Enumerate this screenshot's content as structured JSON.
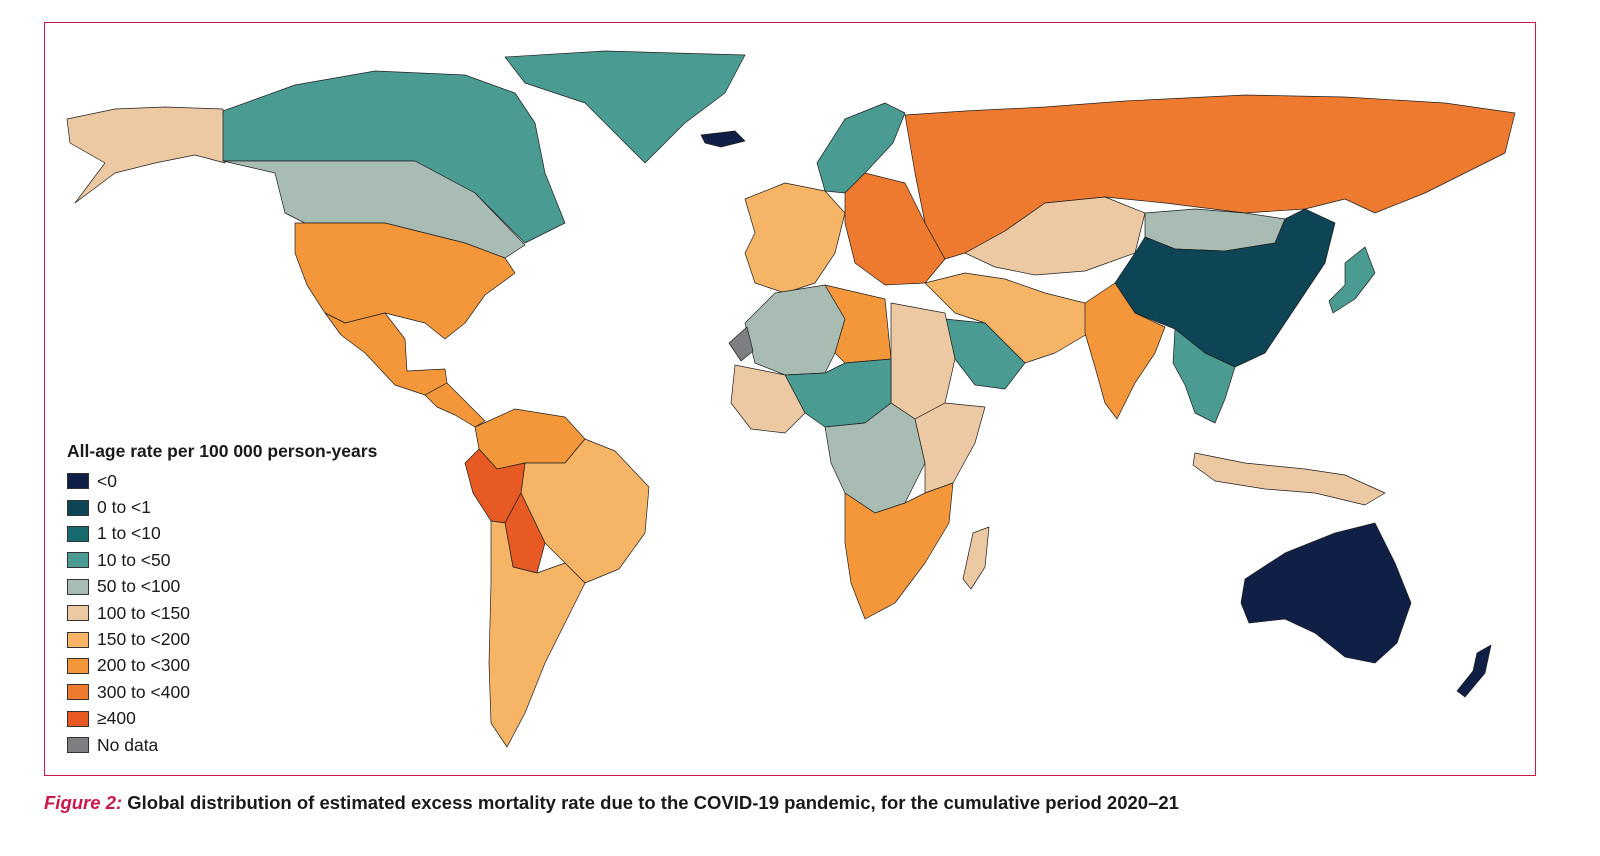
{
  "legend": {
    "title": "All-age rate per 100 000 person-years",
    "items": [
      {
        "label": "<0",
        "color": "#0f1f45"
      },
      {
        "label": "0 to <1",
        "color": "#0d4456"
      },
      {
        "label": "1 to <10",
        "color": "#176b6e"
      },
      {
        "label": "10 to <50",
        "color": "#4a9b92"
      },
      {
        "label": "50 to <100",
        "color": "#a8bcb4"
      },
      {
        "label": "100 to <150",
        "color": "#ecc9a2"
      },
      {
        "label": "150 to <200",
        "color": "#f6b467"
      },
      {
        "label": "200 to <300",
        "color": "#f3973a"
      },
      {
        "label": "300 to <400",
        "color": "#ee7a2f"
      },
      {
        "label": "≥400",
        "color": "#e85a24"
      },
      {
        "label": "No data",
        "color": "#7d7f82"
      }
    ]
  },
  "caption": {
    "figure_label": "Figure 2:",
    "text": "Global distribution of estimated excess mortality rate due to the COVID-19 pandemic, for the cumulative period 2020–21"
  },
  "regions": [
    {
      "name": "Alaska",
      "category": "100 to <150"
    },
    {
      "name": "Canada north",
      "category": "10 to <50"
    },
    {
      "name": "Canada south",
      "category": "50 to <100"
    },
    {
      "name": "Greenland",
      "category": "10 to <50"
    },
    {
      "name": "Iceland",
      "category": "<0"
    },
    {
      "name": "USA",
      "category": "200 to <300"
    },
    {
      "name": "Mexico",
      "category": "200 to <300"
    },
    {
      "name": "Central America",
      "category": "200 to <300"
    },
    {
      "name": "Colombia-Venezuela",
      "category": "200 to <300"
    },
    {
      "name": "Brazil",
      "category": "150 to <200"
    },
    {
      "name": "Peru",
      "category": "≥400"
    },
    {
      "name": "Bolivia",
      "category": "≥400"
    },
    {
      "name": "Argentina-Chile",
      "category": "150 to <200"
    },
    {
      "name": "Scandinavia",
      "category": "10 to <50"
    },
    {
      "name": "Western Europe",
      "category": "150 to <200"
    },
    {
      "name": "Eastern Europe",
      "category": "300 to <400"
    },
    {
      "name": "Russia",
      "category": "300 to <400"
    },
    {
      "name": "Kazakhstan",
      "category": "100 to <150"
    },
    {
      "name": "Mongolia",
      "category": "50 to <100"
    },
    {
      "name": "China",
      "category": "0 to <1"
    },
    {
      "name": "Japan",
      "category": "10 to <50"
    },
    {
      "name": "India",
      "category": "200 to <300"
    },
    {
      "name": "Middle East",
      "category": "150 to <200"
    },
    {
      "name": "Saudi Arabia",
      "category": "10 to <50"
    },
    {
      "name": "North Africa",
      "category": "50 to <100"
    },
    {
      "name": "Libya",
      "category": "200 to <300"
    },
    {
      "name": "Egypt-Sudan",
      "category": "100 to <150"
    },
    {
      "name": "Sahel",
      "category": "10 to <50"
    },
    {
      "name": "West Africa",
      "category": "100 to <150"
    },
    {
      "name": "Central Africa",
      "category": "50 to <100"
    },
    {
      "name": "East Africa",
      "category": "100 to <150"
    },
    {
      "name": "Southern Africa",
      "category": "200 to <300"
    },
    {
      "name": "Madagascar",
      "category": "100 to <150"
    },
    {
      "name": "Southeast Asia",
      "category": "10 to <50"
    },
    {
      "name": "Indonesia",
      "category": "100 to <150"
    },
    {
      "name": "Australia",
      "category": "<0"
    },
    {
      "name": "New Zealand",
      "category": "<0"
    },
    {
      "name": "Western Sahara",
      "category": "No data"
    }
  ]
}
